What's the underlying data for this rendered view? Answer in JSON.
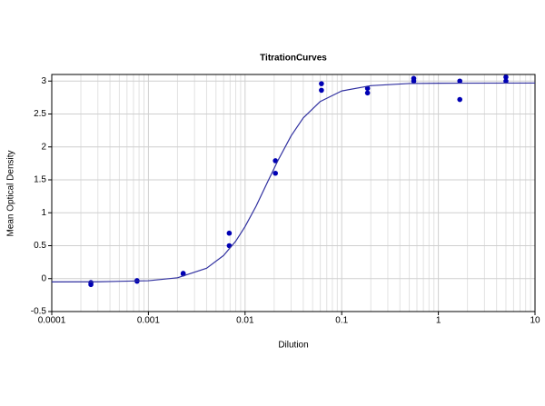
{
  "chart_data": {
    "type": "scatter",
    "title": "TitrationCurves",
    "x_label": "Dilution",
    "y_label": "Mean Optical Density",
    "xscale": "log",
    "grid": true,
    "xlim": [
      0.0001,
      10
    ],
    "xticks": [
      0.0001,
      0.001,
      0.01,
      0.1,
      1,
      10
    ],
    "ylim": [
      -0.5,
      3.1
    ],
    "yticks": [
      -0.5,
      0,
      0.5,
      1,
      1.5,
      2,
      2.5,
      3
    ],
    "series": [
      {
        "type": "scatter",
        "color": "#0000b4",
        "x": [
          0.000254,
          0.000254,
          0.000762,
          0.000762,
          0.00229,
          0.00229,
          0.00686,
          0.00686,
          0.0206,
          0.0206,
          0.0617,
          0.0617,
          0.185,
          0.185,
          0.556,
          0.556,
          1.667,
          1.667,
          5,
          5
        ],
        "values": [
          -0.06,
          -0.09,
          -0.03,
          -0.04,
          0.08,
          0.07,
          0.69,
          0.5,
          1.79,
          1.6,
          2.96,
          2.86,
          2.89,
          2.82,
          3.04,
          3.0,
          3.0,
          2.72,
          3.06,
          3.0
        ]
      },
      {
        "type": "line",
        "color": "#3030a0",
        "x": [
          0.0001,
          0.0003,
          0.001,
          0.002,
          0.004,
          0.006,
          0.008,
          0.01,
          0.013,
          0.017,
          0.022,
          0.03,
          0.04,
          0.06,
          0.1,
          0.2,
          0.5,
          1,
          10
        ],
        "values": [
          -0.05,
          -0.048,
          -0.032,
          0.013,
          0.158,
          0.352,
          0.568,
          0.79,
          1.1,
          1.46,
          1.8,
          2.17,
          2.44,
          2.69,
          2.85,
          2.93,
          2.963,
          2.967,
          2.97
        ]
      }
    ]
  }
}
